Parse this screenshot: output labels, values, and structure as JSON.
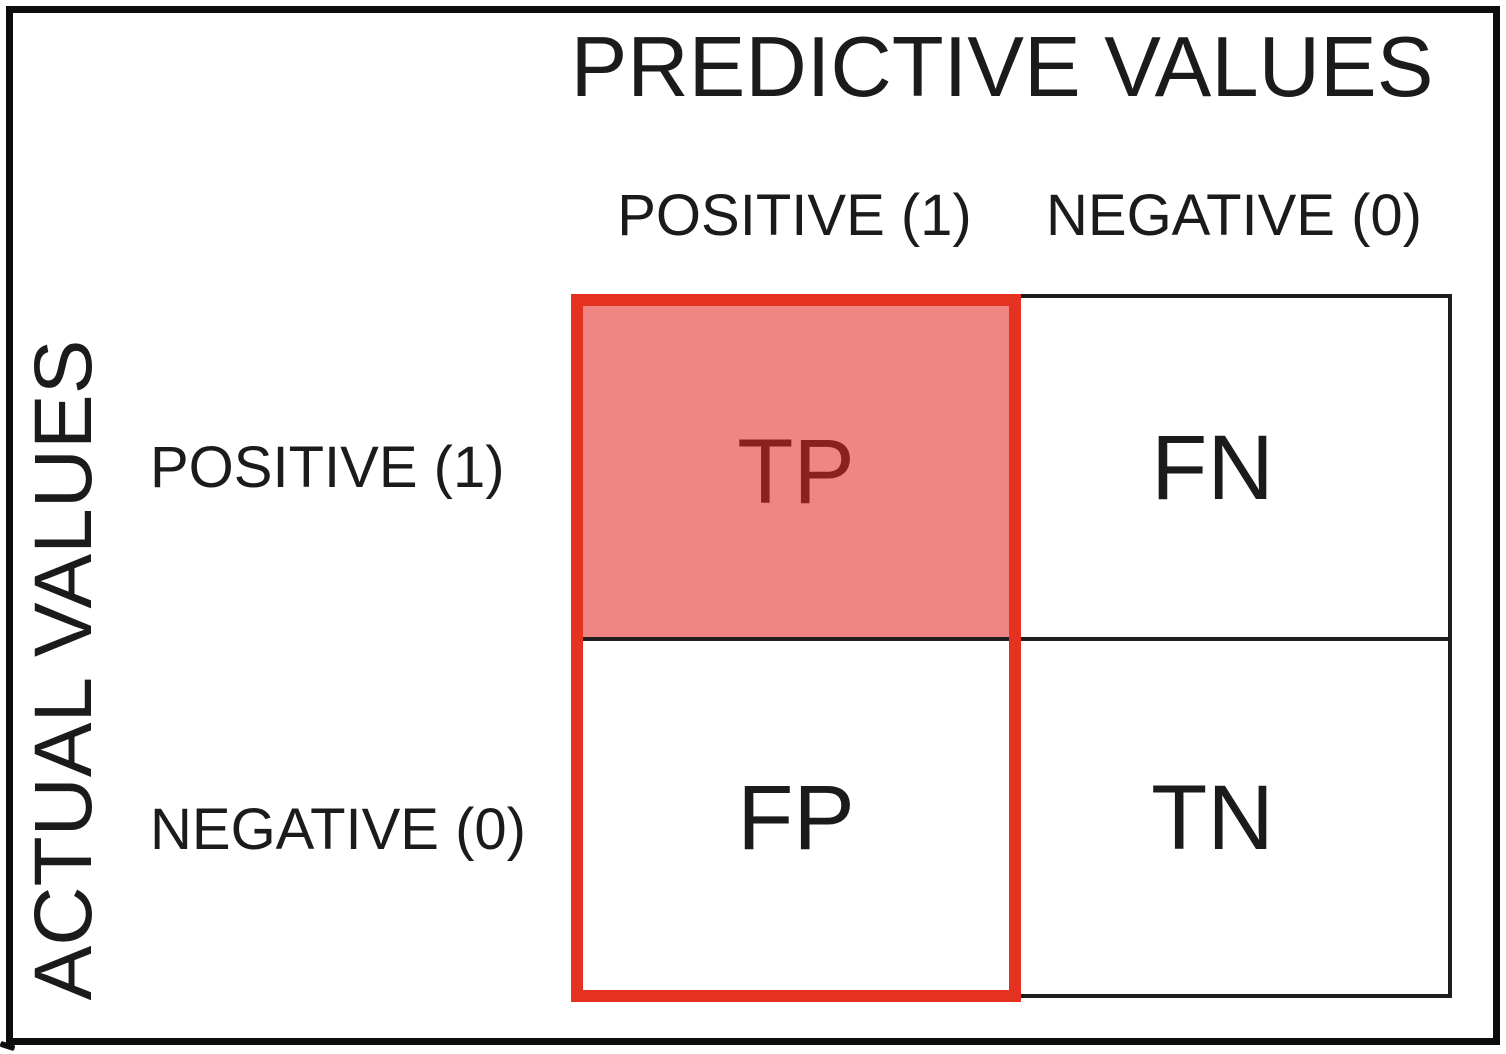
{
  "matrix": {
    "title": "PREDICTIVE VALUES",
    "side_title": "ACTUAL VALUES",
    "column_headers": [
      "POSITIVE (1)",
      "NEGATIVE (0)"
    ],
    "row_headers": [
      "POSITIVE (1)",
      "NEGATIVE (0)"
    ],
    "cells": [
      {
        "id": "tp",
        "label": "TP",
        "row": "POSITIVE (1)",
        "column": "POSITIVE (1)",
        "highlighted": true
      },
      {
        "id": "fn",
        "label": "FN",
        "row": "POSITIVE (1)",
        "column": "NEGATIVE (0)",
        "highlighted": false
      },
      {
        "id": "fp",
        "label": "FP",
        "row": "NEGATIVE (0)",
        "column": "POSITIVE (1)",
        "highlighted": false
      },
      {
        "id": "tn",
        "label": "TN",
        "row": "NEGATIVE (0)",
        "column": "NEGATIVE (0)",
        "highlighted": false
      }
    ],
    "highlight": {
      "outlined_column": "POSITIVE (1)",
      "filled_cell": "TP"
    },
    "colors": {
      "highlight_fill": "#F08684",
      "highlight_border": "#E5311F",
      "highlight_text": "#8B2020",
      "grid_line": "#1E1E1E",
      "frame": "#0D0D0D",
      "text": "#1B1B1B",
      "background": "#FFFFFF"
    }
  }
}
